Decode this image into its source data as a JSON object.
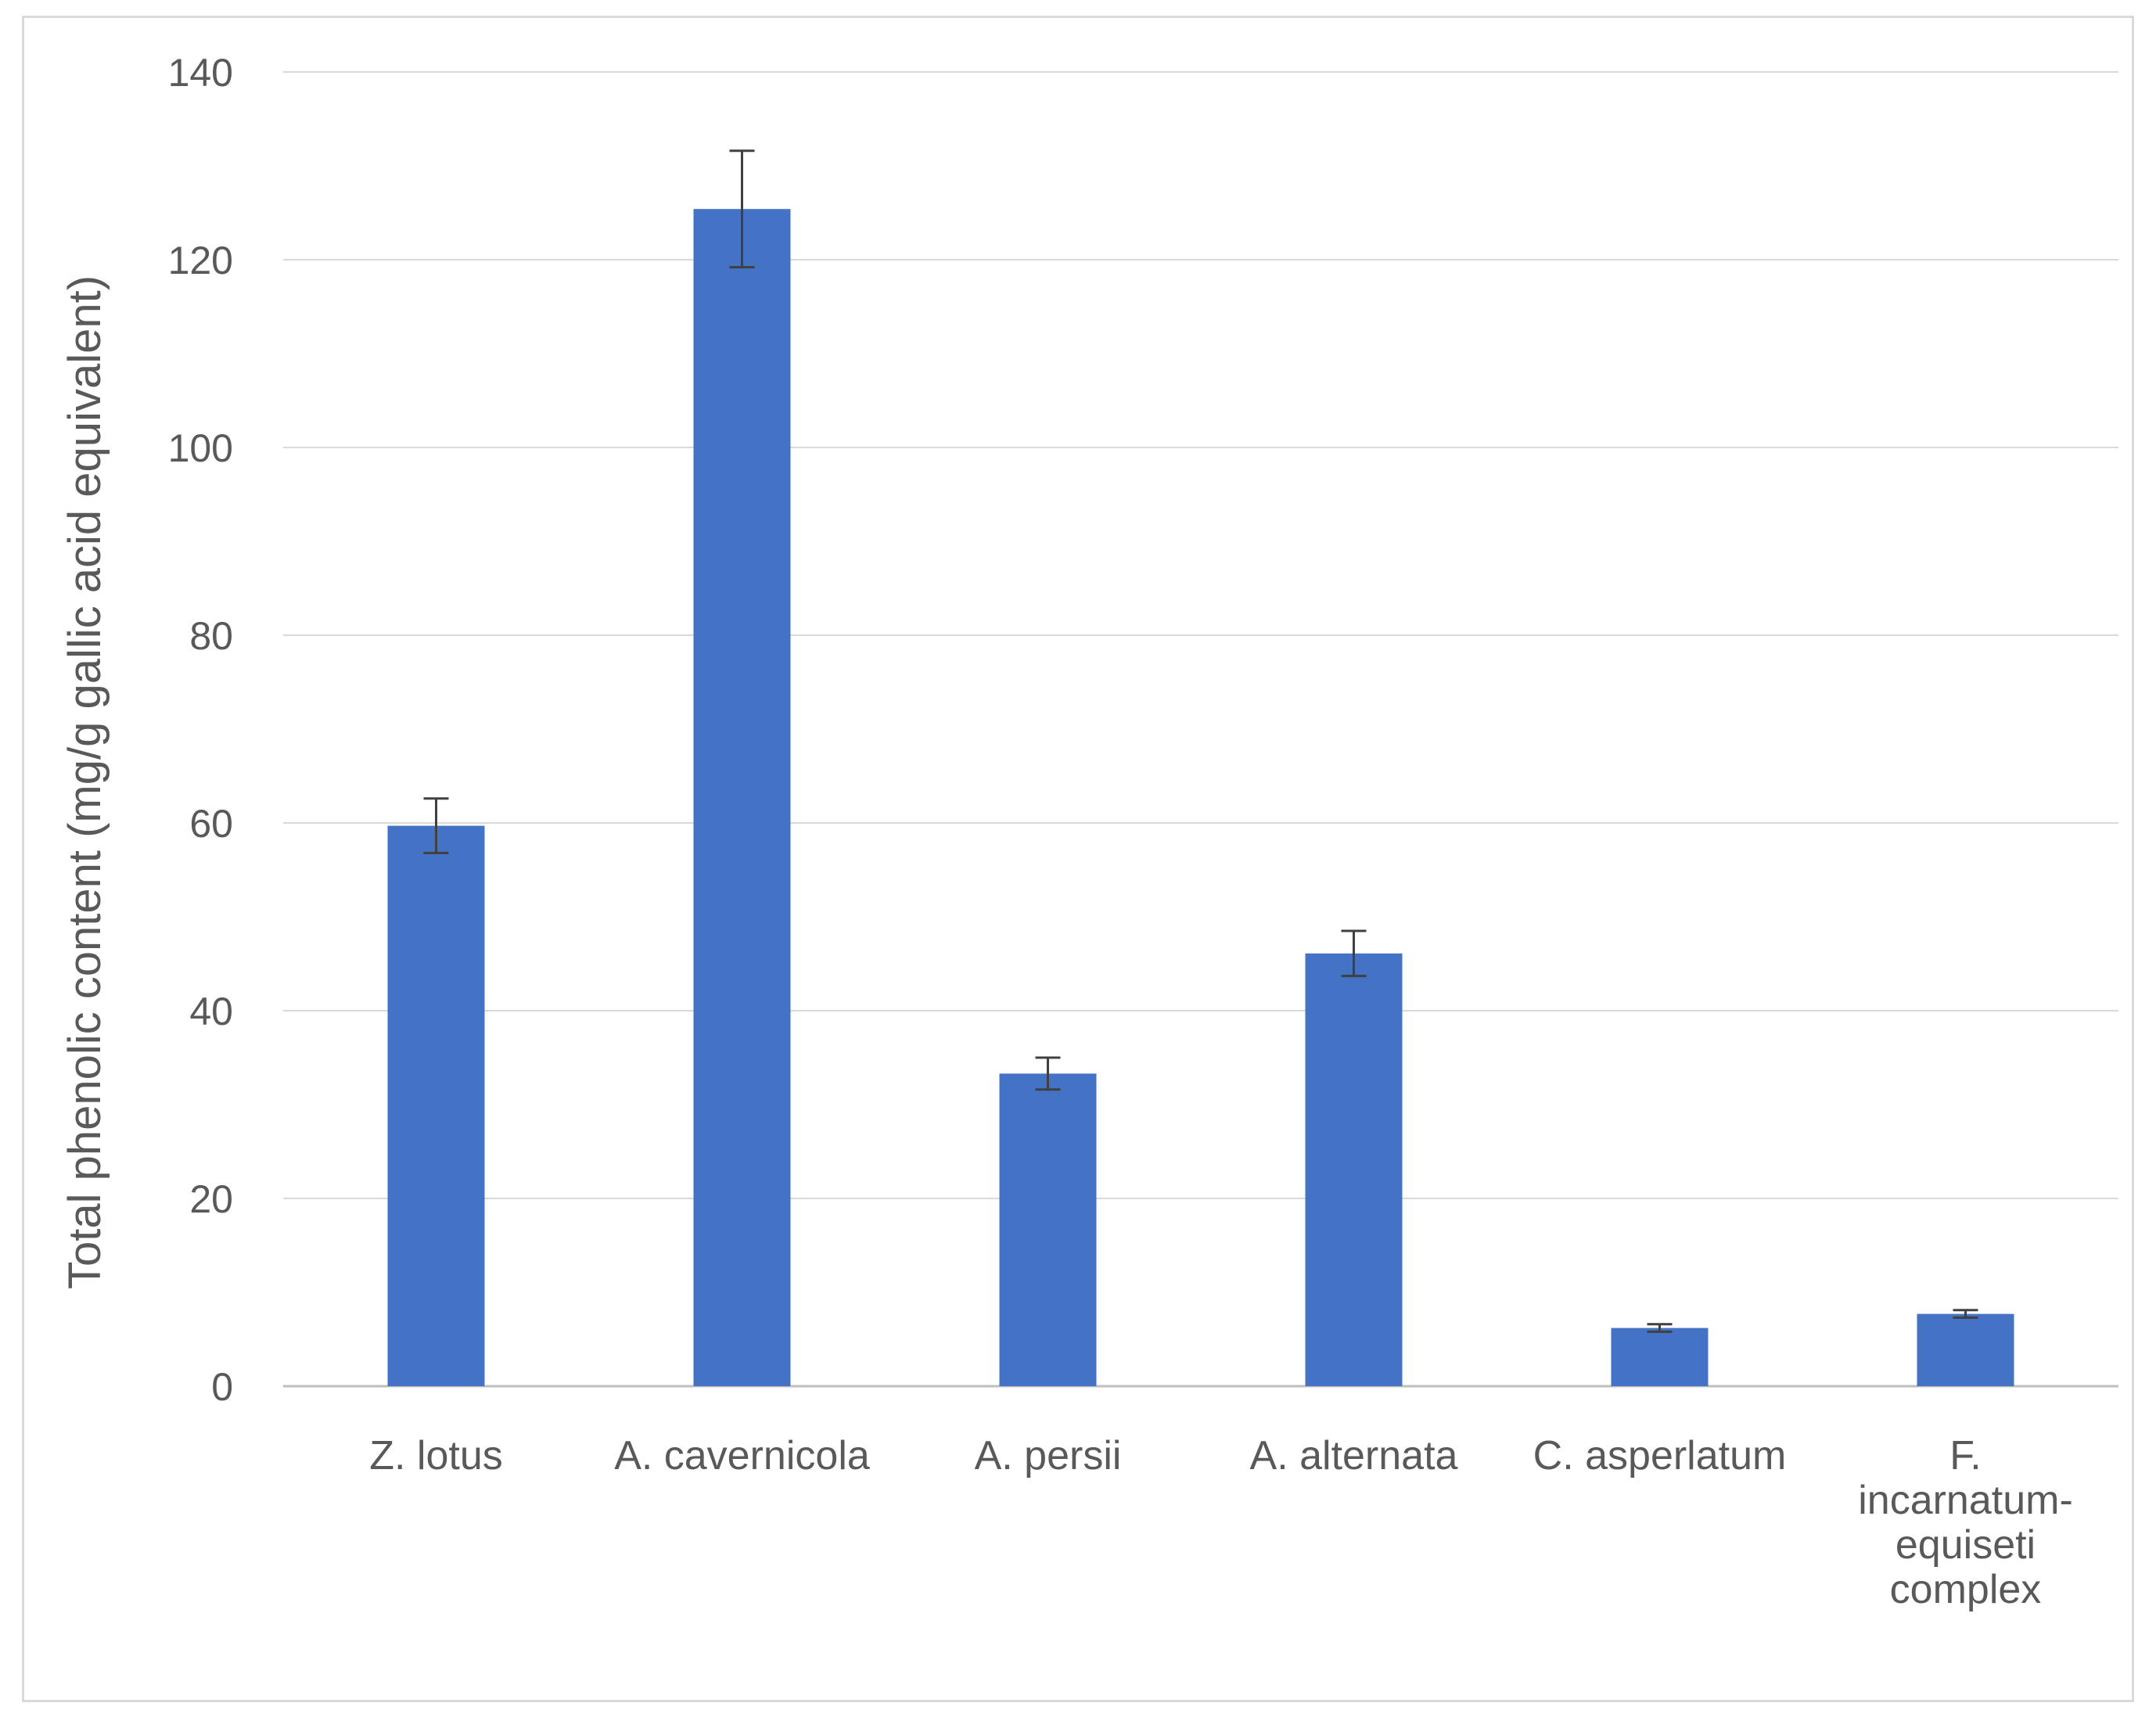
{
  "chart_data": {
    "type": "bar",
    "ylabel": "Total phenolic content  (mg/g gallic acid equivalent)",
    "xlabel": "",
    "ylim": [
      0,
      140
    ],
    "yticks": [
      "0",
      "20",
      "40",
      "60",
      "80",
      "100",
      "120",
      "140"
    ],
    "grid": true,
    "categories": [
      [
        "Z. lotus"
      ],
      [
        "A. cavernicola"
      ],
      [
        "A. persii"
      ],
      [
        "A. alternata"
      ],
      [
        "C. asperlatum"
      ],
      [
        "F.",
        "incarnatum-",
        "equiseti",
        "complex"
      ]
    ],
    "values": [
      59.7,
      125.4,
      33.3,
      46.1,
      6.2,
      7.7
    ],
    "errors": [
      2.9,
      6.2,
      1.7,
      2.4,
      0.4,
      0.4
    ],
    "colors": {
      "bar": "#4472C4",
      "grid": "#d9d9d9",
      "axis": "#bfbfbf",
      "error": "#404040"
    }
  }
}
